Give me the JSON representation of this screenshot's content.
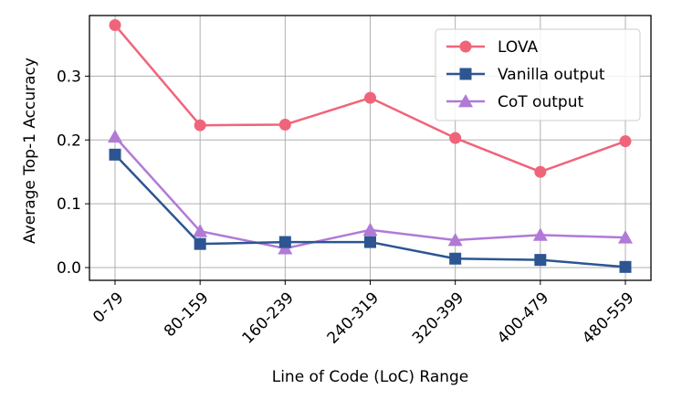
{
  "chart_data": {
    "type": "line",
    "title": "",
    "xlabel": "Line of Code (LoC) Range",
    "ylabel": "Average Top-1 Accuracy",
    "categories": [
      "0-79",
      "80-159",
      "160-239",
      "240-319",
      "320-399",
      "400-479",
      "480-559"
    ],
    "ylim": [
      -0.02,
      0.395
    ],
    "yticks": [
      0.0,
      0.1,
      0.2,
      0.3
    ],
    "ytick_labels": [
      "0.0",
      "0.1",
      "0.2",
      "0.3"
    ],
    "grid": true,
    "legend_position": "top-right",
    "series": [
      {
        "name": "LOVA",
        "marker": "circle",
        "color": "#f0647a",
        "values": [
          0.38,
          0.223,
          0.224,
          0.266,
          0.203,
          0.15,
          0.198
        ]
      },
      {
        "name": "Vanilla output",
        "marker": "square",
        "color": "#2d5592",
        "values": [
          0.177,
          0.037,
          0.04,
          0.04,
          0.014,
          0.012,
          0.001
        ]
      },
      {
        "name": "CoT output",
        "marker": "triangle",
        "color": "#b07ad6",
        "values": [
          0.205,
          0.057,
          0.03,
          0.059,
          0.043,
          0.051,
          0.047
        ]
      }
    ]
  }
}
